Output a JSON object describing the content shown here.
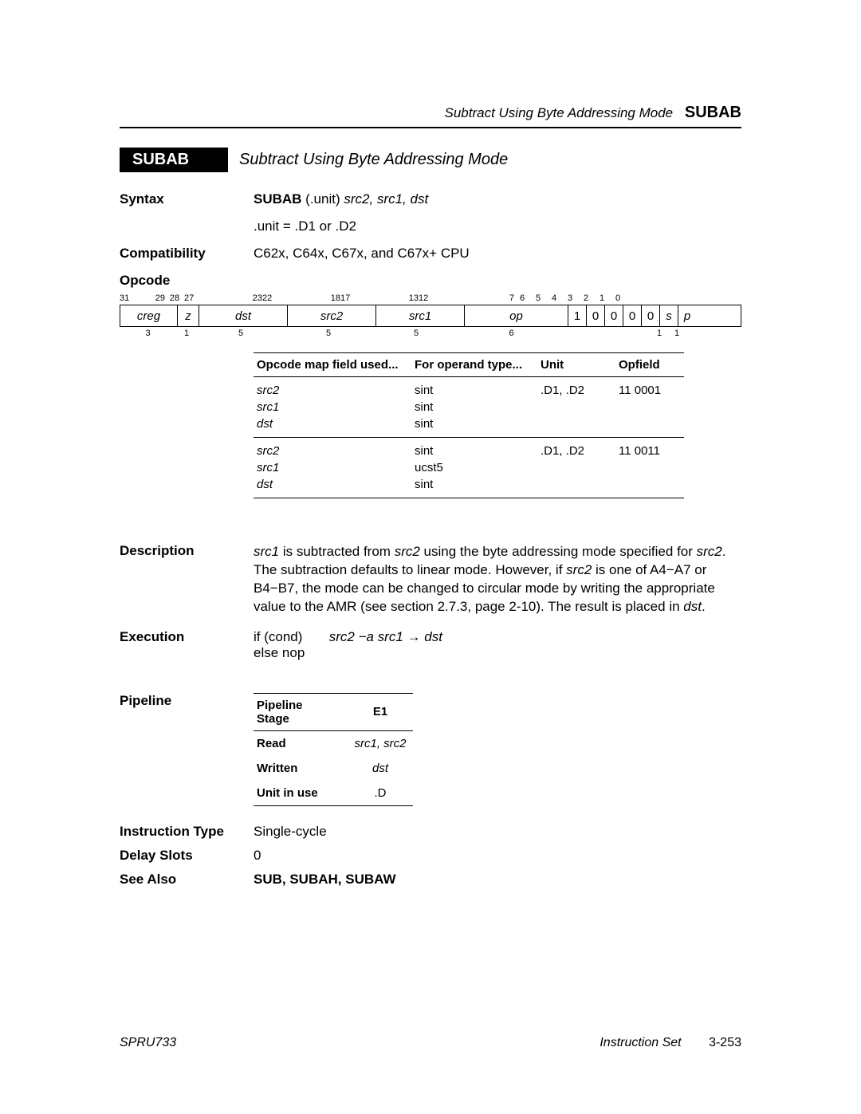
{
  "header": {
    "running_title_italic": "Subtract Using Byte Addressing Mode",
    "running_title_bold": "SUBAB"
  },
  "title": {
    "badge": "SUBAB",
    "text": "Subtract Using Byte Addressing Mode"
  },
  "syntax": {
    "label": "Syntax",
    "mnemonic": "SUBAB",
    "unit_label": " (.unit) ",
    "args": "src2, src1, dst",
    "unit_line": ".unit = .D1 or .D2"
  },
  "compat": {
    "label": "Compatibility",
    "text": "C62x, C64x, C67x, and C67x+ CPU"
  },
  "opcode": {
    "label": "Opcode",
    "bit_labels_top": [
      "31",
      "29",
      "28",
      "27",
      "23",
      "22",
      "18",
      "17",
      "13",
      "12",
      "7",
      "6",
      "5",
      "4",
      "3",
      "2",
      "1",
      "0"
    ],
    "fields": [
      {
        "name": "creg",
        "width_label": "3",
        "flex": 71,
        "italic": true
      },
      {
        "name": "z",
        "width_label": "1",
        "flex": 26,
        "italic": true
      },
      {
        "name": "dst",
        "width_label": "5",
        "flex": 110,
        "italic": true
      },
      {
        "name": "src2",
        "width_label": "5",
        "flex": 110,
        "italic": true
      },
      {
        "name": "src1",
        "width_label": "5",
        "flex": 110,
        "italic": true
      },
      {
        "name": "op",
        "width_label": "6",
        "flex": 129,
        "italic": true
      },
      {
        "name": "1",
        "width_label": "",
        "flex": 22,
        "italic": false
      },
      {
        "name": "0",
        "width_label": "",
        "flex": 22,
        "italic": false
      },
      {
        "name": "0",
        "width_label": "",
        "flex": 22,
        "italic": false
      },
      {
        "name": "0",
        "width_label": "",
        "flex": 22,
        "italic": false
      },
      {
        "name": "0",
        "width_label": "",
        "flex": 22,
        "italic": false
      },
      {
        "name": "s",
        "width_label": "1",
        "flex": 22,
        "italic": true
      },
      {
        "name": "p",
        "width_label": "1",
        "flex": 22,
        "italic": true
      }
    ]
  },
  "opmap": {
    "headers": [
      "Opcode map field used...",
      "For operand type...",
      "Unit",
      "Opfield"
    ],
    "groups": [
      {
        "rows": [
          {
            "f": "src2",
            "t": "sint",
            "u": ".D1, .D2",
            "o": "11 0001"
          },
          {
            "f": "src1",
            "t": "sint",
            "u": "",
            "o": ""
          },
          {
            "f": "dst",
            "t": "sint",
            "u": "",
            "o": ""
          }
        ]
      },
      {
        "rows": [
          {
            "f": "src2",
            "t": "sint",
            "u": ".D1, .D2",
            "o": "11 0011"
          },
          {
            "f": "src1",
            "t": "ucst5",
            "u": "",
            "o": ""
          },
          {
            "f": "dst",
            "t": "sint",
            "u": "",
            "o": ""
          }
        ]
      }
    ]
  },
  "description": {
    "label": "Description",
    "p1a": "src1",
    "p1b": " is subtracted from ",
    "p1c": "src2",
    "p1d": " using the byte addressing mode specified for ",
    "p1e": "src2",
    "p1f": ". The subtraction defaults to linear mode. However, if ",
    "p1g": "src2",
    "p1h": " is one of A4−A7 or B4−B7, the mode can be changed to circular mode by writing the appropriate value to the AMR (see section 2.7.3, page 2-10). The result is placed in ",
    "p1i": "dst",
    "p1j": "."
  },
  "execution": {
    "label": "Execution",
    "line1a": "if (cond)",
    "line1b": "src2 −a src1 → dst",
    "line2": "else nop"
  },
  "pipeline": {
    "label": "Pipeline",
    "h1": "Pipeline Stage",
    "h2": "E1",
    "rows": [
      {
        "k": "Read",
        "v": "src1, src2",
        "v_italic": true
      },
      {
        "k": "Written",
        "v": "dst",
        "v_italic": true
      },
      {
        "k": "Unit in use",
        "v": ".D",
        "v_italic": false
      }
    ]
  },
  "itype": {
    "label": "Instruction Type",
    "value": "Single-cycle"
  },
  "dslots": {
    "label": "Delay Slots",
    "value": "0"
  },
  "seealso": {
    "label": "See Also",
    "value": "SUB, SUBAH, SUBAW"
  },
  "footer": {
    "left": "SPRU733",
    "right_italic": "Instruction Set",
    "right_page": "3-253"
  }
}
